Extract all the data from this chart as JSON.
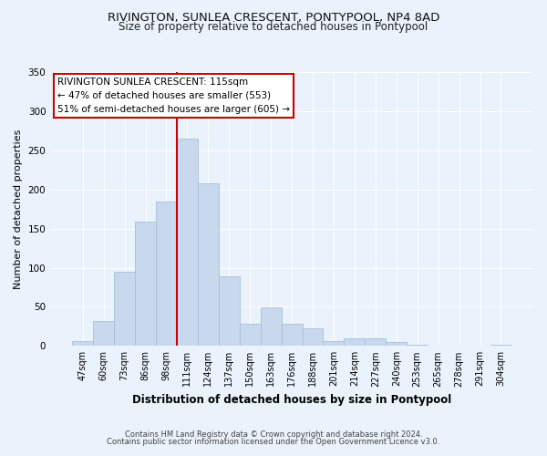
{
  "title": "RIVINGTON, SUNLEA CRESCENT, PONTYPOOL, NP4 8AD",
  "subtitle": "Size of property relative to detached houses in Pontypool",
  "xlabel": "Distribution of detached houses by size in Pontypool",
  "ylabel": "Number of detached properties",
  "bar_labels": [
    "47sqm",
    "60sqm",
    "73sqm",
    "86sqm",
    "98sqm",
    "111sqm",
    "124sqm",
    "137sqm",
    "150sqm",
    "163sqm",
    "176sqm",
    "188sqm",
    "201sqm",
    "214sqm",
    "227sqm",
    "240sqm",
    "253sqm",
    "265sqm",
    "278sqm",
    "291sqm",
    "304sqm"
  ],
  "bar_heights": [
    6,
    32,
    95,
    159,
    184,
    265,
    208,
    89,
    28,
    49,
    28,
    22,
    6,
    10,
    10,
    5,
    2,
    0,
    0,
    0,
    2
  ],
  "bar_color": "#c8d9ee",
  "bar_edge_color": "#a8bfd8",
  "vline_x_index": 5,
  "vline_color": "#cc0000",
  "ylim": [
    0,
    350
  ],
  "yticks": [
    0,
    50,
    100,
    150,
    200,
    250,
    300,
    350
  ],
  "annotation_title": "RIVINGTON SUNLEA CRESCENT: 115sqm",
  "annotation_line1": "← 47% of detached houses are smaller (553)",
  "annotation_line2": "51% of semi-detached houses are larger (605) →",
  "annotation_box_color": "#ffffff",
  "annotation_box_edgecolor": "#cc0000",
  "footer1": "Contains HM Land Registry data © Crown copyright and database right 2024.",
  "footer2": "Contains public sector information licensed under the Open Government Licence v3.0.",
  "background_color": "#eaf2fb",
  "grid_color": "#ffffff"
}
